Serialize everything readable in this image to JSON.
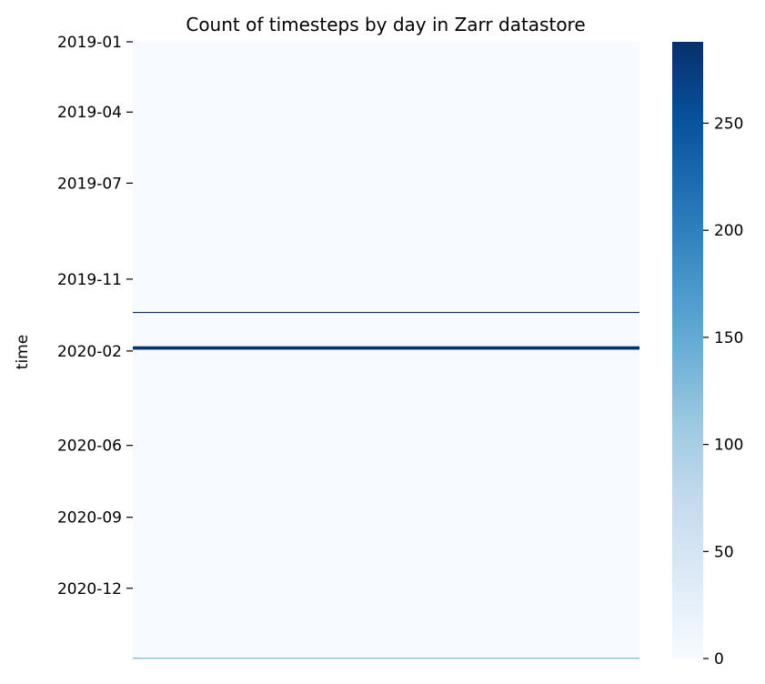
{
  "chart_data": {
    "type": "heatmap",
    "title": "Count of timesteps by day in Zarr datastore",
    "ylabel": "time",
    "xlabel": "",
    "y_ticks": [
      "2019-01",
      "2019-04",
      "2019-07",
      "2019-11",
      "2020-02",
      "2020-06",
      "2020-09",
      "2020-12"
    ],
    "y_range": [
      "2019-01-01",
      "2021-02-28"
    ],
    "rows": [
      {
        "date": "2019-12-13",
        "value": 288
      },
      {
        "date": "2020-01-26",
        "value": 288
      },
      {
        "date": "2020-01-27",
        "value": 288
      },
      {
        "date": "2020-01-28",
        "value": 288
      },
      {
        "date": "2020-01-29",
        "value": 288
      },
      {
        "date": "2021-02-28",
        "value": 140
      }
    ],
    "default_value": 0,
    "colorbar": {
      "min": 0,
      "max": 288,
      "ticks": [
        0,
        50,
        100,
        150,
        200,
        250
      ],
      "colormap": "Blues"
    },
    "colors": {
      "low": "#f7fbff",
      "high": "#08306b"
    }
  }
}
